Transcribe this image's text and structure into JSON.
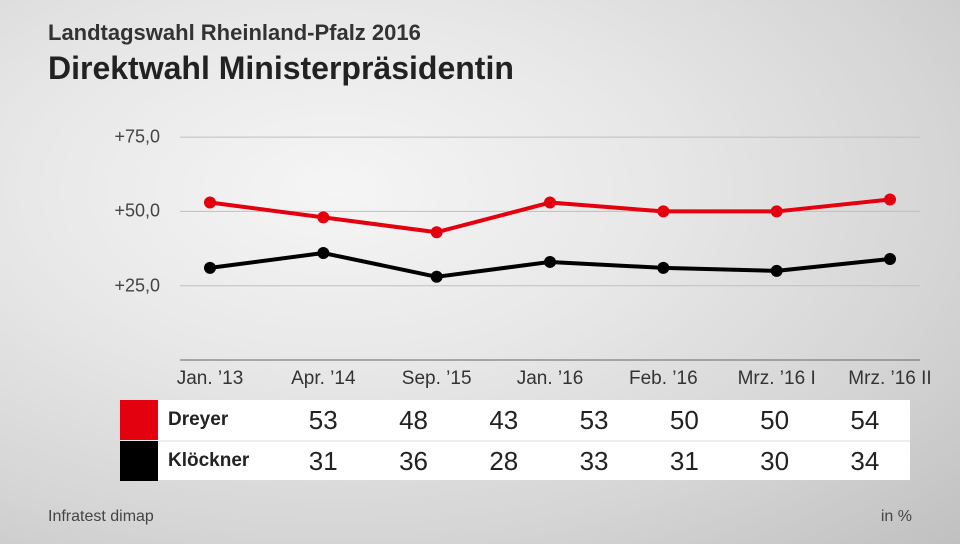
{
  "supertitle": "Landtagswahl Rheinland-Pfalz 2016",
  "title": "Direktwahl Ministerpräsidentin",
  "unit_label": "in %",
  "source": "Infratest dimap",
  "chart": {
    "type": "line",
    "ylim": [
      0,
      87.5
    ],
    "yticks": [
      25.0,
      50.0,
      75.0
    ],
    "ytick_labels": [
      "+25,0",
      "+50,0",
      "+75,0"
    ],
    "categories": [
      "Jan. ’13",
      "Apr. ’14",
      "Sep. ’15",
      "Jan. ’16",
      "Feb. ’16",
      "Mrz. ’16 I",
      "Mrz. ’16 II"
    ],
    "gridline_color": "#bfbfbf",
    "gridline_width": 1,
    "axis_color": "#666666",
    "line_width": 4,
    "marker_radius": 6,
    "label_fontsize": 18,
    "series": [
      {
        "name": "Dreyer",
        "color": "#e3000f",
        "values": [
          53,
          48,
          43,
          53,
          50,
          50,
          54
        ]
      },
      {
        "name": "Klöckner",
        "color": "#000000",
        "values": [
          31,
          36,
          28,
          33,
          31,
          30,
          34
        ]
      }
    ]
  }
}
